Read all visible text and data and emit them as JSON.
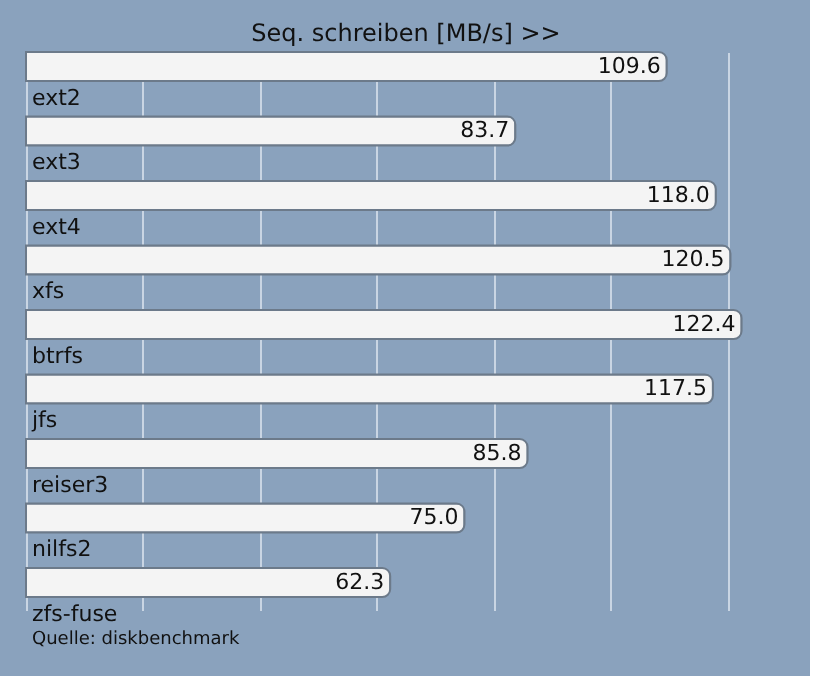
{
  "chart_data": {
    "type": "bar",
    "orientation": "horizontal",
    "title": "Seq. schreiben [MB/s] >>",
    "categories": [
      "ext2",
      "ext3",
      "ext4",
      "xfs",
      "btrfs",
      "jfs",
      "reiser3",
      "nilfs2",
      "zfs-fuse"
    ],
    "values": [
      109.6,
      83.7,
      118.0,
      120.5,
      122.4,
      117.5,
      85.8,
      75.0,
      62.3
    ],
    "value_labels": [
      "109.6",
      "83.7",
      "118.0",
      "120.5",
      "122.4",
      "117.5",
      "85.8",
      "75.0",
      "62.3"
    ],
    "color": "#f4f4f4",
    "grid": "x",
    "tick_labels": false,
    "annotations": [
      "Quelle: diskbenchmark"
    ]
  }
}
